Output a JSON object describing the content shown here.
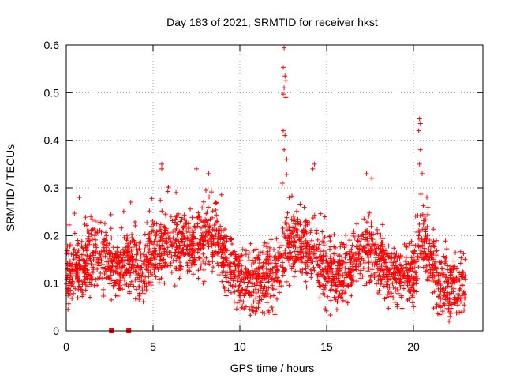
{
  "chart_data": {
    "type": "scatter",
    "title": "Day 183 of 2021, SRMTID for receiver hkst",
    "xlabel": "GPS time / hours",
    "ylabel": "SRMTID / TECUs",
    "xlim": [
      0,
      24
    ],
    "ylim": [
      0,
      0.6
    ],
    "xticks": [
      0,
      5,
      10,
      15,
      20
    ],
    "xtick_labels": [
      "0",
      "5",
      "10",
      "15",
      "20"
    ],
    "yticks": [
      0,
      0.1,
      0.2,
      0.3,
      0.4,
      0.5,
      0.6
    ],
    "ytick_labels": [
      "0",
      "0.1",
      "0.2",
      "0.3",
      "0.4",
      "0.5",
      "0.6"
    ],
    "grid": true,
    "marker": "+",
    "series_color": "#ff0000",
    "x_range": [
      0,
      23
    ],
    "baseline_profile": [
      [
        0,
        0.12
      ],
      [
        1,
        0.13
      ],
      [
        1.8,
        0.16
      ],
      [
        2.5,
        0.14
      ],
      [
        3,
        0.12
      ],
      [
        3.6,
        0.16
      ],
      [
        4.2,
        0.12
      ],
      [
        5,
        0.17
      ],
      [
        6,
        0.18
      ],
      [
        7,
        0.18
      ],
      [
        7.5,
        0.19
      ],
      [
        8.5,
        0.2
      ],
      [
        9.3,
        0.15
      ],
      [
        10,
        0.11
      ],
      [
        11,
        0.1
      ],
      [
        12,
        0.12
      ],
      [
        12.5,
        0.16
      ],
      [
        13,
        0.19
      ],
      [
        14,
        0.17
      ],
      [
        14.5,
        0.14
      ],
      [
        15,
        0.12
      ],
      [
        16,
        0.12
      ],
      [
        17,
        0.16
      ],
      [
        17.5,
        0.17
      ],
      [
        18,
        0.14
      ],
      [
        19,
        0.11
      ],
      [
        20,
        0.12
      ],
      [
        20.5,
        0.2
      ],
      [
        21,
        0.15
      ],
      [
        21.5,
        0.1
      ],
      [
        22.5,
        0.08
      ],
      [
        23,
        0.09
      ]
    ],
    "spread": 0.045,
    "highlighted_points": [
      {
        "x": 12.55,
        "y": 0.594
      },
      {
        "x": 12.5,
        "y": 0.553
      },
      {
        "x": 12.6,
        "y": 0.535
      },
      {
        "x": 12.65,
        "y": 0.525
      },
      {
        "x": 12.55,
        "y": 0.51
      },
      {
        "x": 12.5,
        "y": 0.497
      },
      {
        "x": 12.65,
        "y": 0.49
      },
      {
        "x": 12.5,
        "y": 0.42
      },
      {
        "x": 12.6,
        "y": 0.41
      },
      {
        "x": 12.55,
        "y": 0.38
      },
      {
        "x": 12.7,
        "y": 0.36
      },
      {
        "x": 12.45,
        "y": 0.31
      },
      {
        "x": 20.35,
        "y": 0.445
      },
      {
        "x": 20.4,
        "y": 0.435
      },
      {
        "x": 20.3,
        "y": 0.42
      },
      {
        "x": 20.4,
        "y": 0.38
      },
      {
        "x": 20.35,
        "y": 0.35
      },
      {
        "x": 20.5,
        "y": 0.33
      },
      {
        "x": 0.75,
        "y": 0.28
      },
      {
        "x": 5.5,
        "y": 0.35
      },
      {
        "x": 5.5,
        "y": 0.34
      },
      {
        "x": 7.5,
        "y": 0.34
      },
      {
        "x": 8.2,
        "y": 0.33
      },
      {
        "x": 14.3,
        "y": 0.35
      },
      {
        "x": 14.2,
        "y": 0.34
      },
      {
        "x": 17.3,
        "y": 0.33
      },
      {
        "x": 17.6,
        "y": 0.32
      },
      {
        "x": 0.1,
        "y": 0.045
      },
      {
        "x": 22.05,
        "y": 0.02
      },
      {
        "x": 22.1,
        "y": 0.03
      }
    ],
    "zero_points": [
      {
        "x": 2.6,
        "y": 0.0
      },
      {
        "x": 3.6,
        "y": 0.0
      }
    ]
  }
}
